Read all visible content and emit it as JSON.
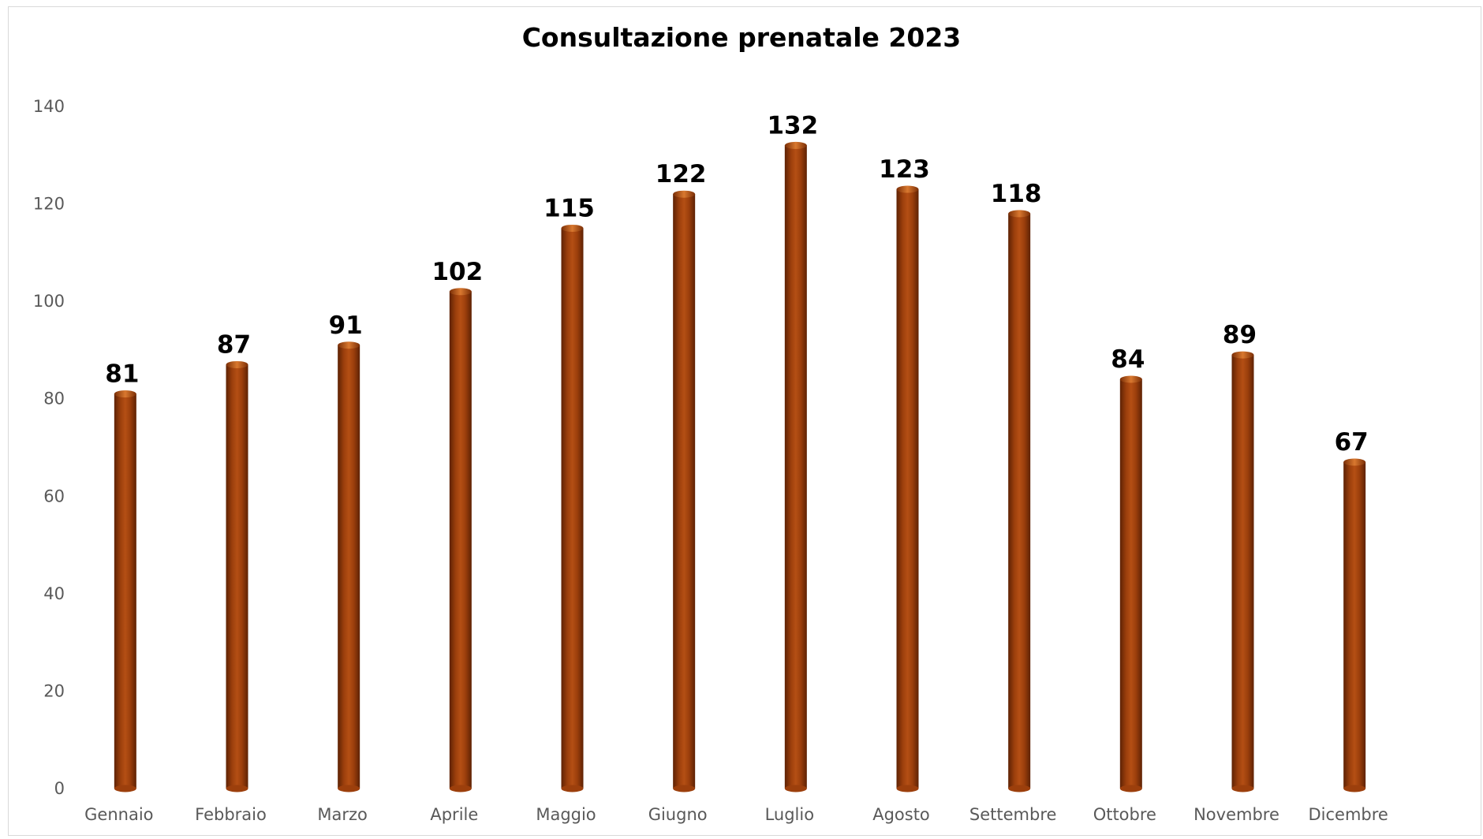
{
  "chart_data": {
    "type": "bar",
    "title": "Consultazione prenatale 2023",
    "xlabel": "",
    "ylabel": "",
    "categories": [
      "Gennaio",
      "Febbraio",
      "Marzo",
      "Aprile",
      "Maggio",
      "Giugno",
      "Luglio",
      "Agosto",
      "Settembre",
      "Ottobre",
      "Novembre",
      "Dicembre"
    ],
    "values": [
      81,
      87,
      91,
      102,
      115,
      122,
      132,
      123,
      118,
      84,
      89,
      67
    ],
    "ylim": [
      0,
      140
    ],
    "yticks": [
      0,
      20,
      40,
      60,
      80,
      100,
      120,
      140
    ],
    "grid": false,
    "legend": "none",
    "bar_style": "cylinder",
    "colors": {
      "bar": "#9c3f0c",
      "bar_light": "#d9782f",
      "bar_dark": "#5e2204",
      "axis_text": "#595959",
      "frame": "#d9d9d9"
    }
  }
}
